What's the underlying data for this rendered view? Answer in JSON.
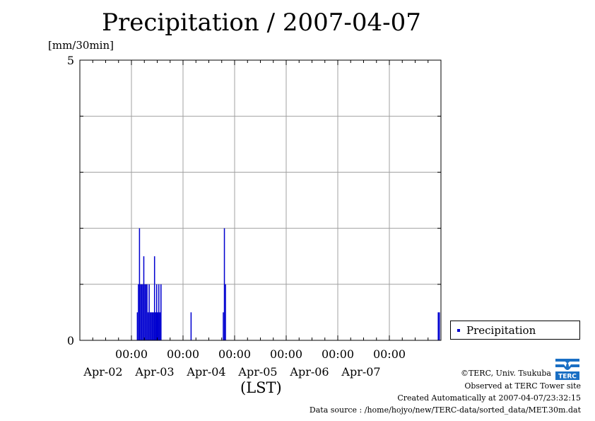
{
  "title": "Precipitation / 2007-04-07",
  "y_unit": "[mm/30min]",
  "x_label": "(LST)",
  "legend_label": "Precipitation",
  "credits": {
    "line1": "©TERC, Univ. Tsukuba",
    "line2": "Observed at TERC Tower site",
    "line3": "Created Automatically at 2007-04-07/23:32:15",
    "line4": "Data source : /home/hojyo/new/TERC-data/sorted_data/MET.30m.dat"
  },
  "logo_text": "TERC",
  "colors": {
    "series": "#0000d0",
    "grid": "#a0a0a0"
  },
  "chart_data": {
    "type": "bar",
    "title": "Precipitation / 2007-04-07",
    "ylabel": "[mm/30min]",
    "xlabel": "(LST)",
    "ylim": [
      0,
      5
    ],
    "y_ticks": [
      0,
      5
    ],
    "x_range_days": [
      "2007-04-01 00:00",
      "2007-04-07 24:00"
    ],
    "x_ticks": [
      {
        "time": "00:00",
        "date": "Apr-02"
      },
      {
        "time": "00:00",
        "date": "Apr-03"
      },
      {
        "time": "00:00",
        "date": "Apr-04"
      },
      {
        "time": "00:00",
        "date": "Apr-05"
      },
      {
        "time": "00:00",
        "date": "Apr-06"
      },
      {
        "time": "00:00",
        "date": "Apr-07"
      }
    ],
    "grid": true,
    "legend": "right",
    "series": [
      {
        "name": "Precipitation",
        "points": [
          [
            "2007-04-02 02:30",
            0.5
          ],
          [
            "2007-04-02 03:00",
            1.0
          ],
          [
            "2007-04-02 03:30",
            2.0
          ],
          [
            "2007-04-02 04:00",
            1.0
          ],
          [
            "2007-04-02 04:30",
            1.0
          ],
          [
            "2007-04-02 05:00",
            1.0
          ],
          [
            "2007-04-02 05:30",
            1.5
          ],
          [
            "2007-04-02 06:00",
            1.0
          ],
          [
            "2007-04-02 06:30",
            1.0
          ],
          [
            "2007-04-02 07:00",
            1.0
          ],
          [
            "2007-04-02 07:30",
            0.5
          ],
          [
            "2007-04-02 08:00",
            1.0
          ],
          [
            "2007-04-02 08:30",
            0.5
          ],
          [
            "2007-04-02 09:00",
            0.5
          ],
          [
            "2007-04-02 09:30",
            0.5
          ],
          [
            "2007-04-02 10:00",
            0.5
          ],
          [
            "2007-04-02 10:30",
            1.5
          ],
          [
            "2007-04-02 11:00",
            0.5
          ],
          [
            "2007-04-02 11:30",
            1.0
          ],
          [
            "2007-04-02 12:00",
            0.5
          ],
          [
            "2007-04-02 12:30",
            1.0
          ],
          [
            "2007-04-02 13:00",
            0.5
          ],
          [
            "2007-04-02 13:30",
            1.0
          ],
          [
            "2007-04-03 03:30",
            0.5
          ],
          [
            "2007-04-03 18:30",
            0.5
          ],
          [
            "2007-04-03 19:00",
            2.0
          ],
          [
            "2007-04-03 19:30",
            1.0
          ],
          [
            "2007-04-07 22:30",
            0.5
          ],
          [
            "2007-04-07 23:00",
            0.5
          ]
        ]
      }
    ]
  }
}
